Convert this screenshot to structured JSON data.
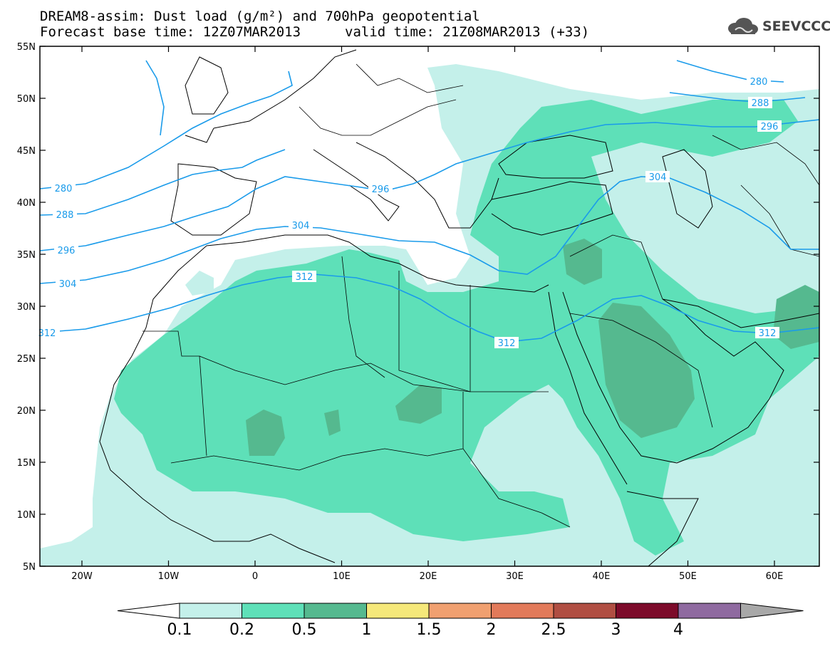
{
  "header": {
    "title_line1": "DREAM8-assim: Dust load (g/m²) and 700hPa geopotential",
    "title_line2": "Forecast base time: 12Z07MAR2013",
    "valid_time": "valid time: 21Z08MAR2013 (+33)"
  },
  "logo": {
    "text": "SEEVCCC",
    "icon": "cloud-icon"
  },
  "map": {
    "lat_labels": [
      "55N",
      "50N",
      "45N",
      "40N",
      "35N",
      "30N",
      "25N",
      "20N",
      "15N",
      "10N",
      "5N"
    ],
    "lon_labels": [
      "20W",
      "10W",
      "0",
      "10E",
      "20E",
      "30E",
      "40E",
      "50E",
      "60E"
    ],
    "contour_labels": [
      "280",
      "288",
      "296",
      "304",
      "312",
      "280",
      "288",
      "296",
      "304",
      "312",
      "296",
      "304",
      "312",
      "312"
    ],
    "colors": {
      "dust_0_1": "#c4f0ea",
      "dust_0_2": "#5ee0b8",
      "dust_0_5": "#55b98f",
      "contour": "#1a9bea",
      "coast": "#000000"
    }
  },
  "colorbar": {
    "labels": [
      "0.1",
      "0.2",
      "0.5",
      "1",
      "1.5",
      "2",
      "2.5",
      "3",
      "4"
    ],
    "colors": [
      "#c4f0ea",
      "#5ee0b8",
      "#55b98f",
      "#f5e87a",
      "#f0a070",
      "#e27a5a",
      "#b04e42",
      "#7c0a2a",
      "#8f6aa0"
    ],
    "under_color": "#ffffff",
    "over_color": "#a8a8a8"
  }
}
